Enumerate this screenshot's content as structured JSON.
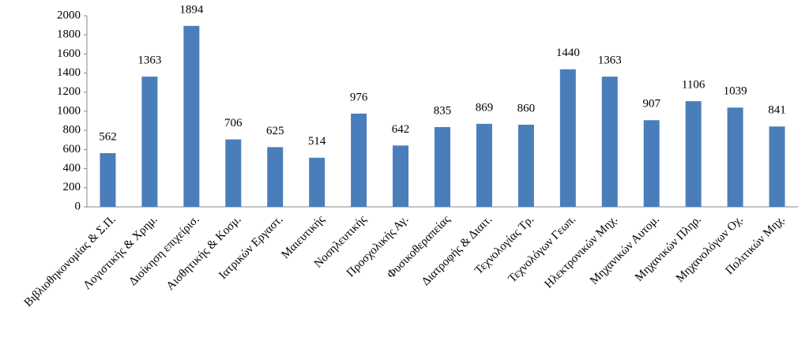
{
  "chart_data": {
    "type": "bar",
    "categories": [
      "Βιβλιοθηκονομίας & Σ.Π.",
      "Λογιστικής & Χρημ.",
      "Διοίκηση επιχείρισ.",
      "Αισθητικής & Κοσμ.",
      "Ιατρικών Εργαστ.",
      "Μαιευτικής",
      "Νοσηλευτικής",
      "Προσχολικής Αγ.",
      "Φυσικοθεραπείας",
      "Διατροφής & Διαιτ.",
      "Τεχνολογίας Τρ.",
      "Τεχνολόγων Γεωπ.",
      "Ηλεκτρονικών Μηχ.",
      "Μηχανικών Αυτομ.",
      "Μηχανικών Πληρ.",
      "Μηχανολόγων Οχ.",
      "Πολιτικών Μηχ."
    ],
    "values": [
      562,
      1363,
      1894,
      706,
      625,
      514,
      976,
      642,
      835,
      869,
      860,
      1440,
      1363,
      907,
      1106,
      1039,
      841
    ],
    "color": "#4a7ebb",
    "ylim": [
      0,
      2000
    ],
    "yticks": [
      0,
      200,
      400,
      600,
      800,
      1000,
      1200,
      1400,
      1600,
      1800,
      2000
    ],
    "grid": false
  }
}
